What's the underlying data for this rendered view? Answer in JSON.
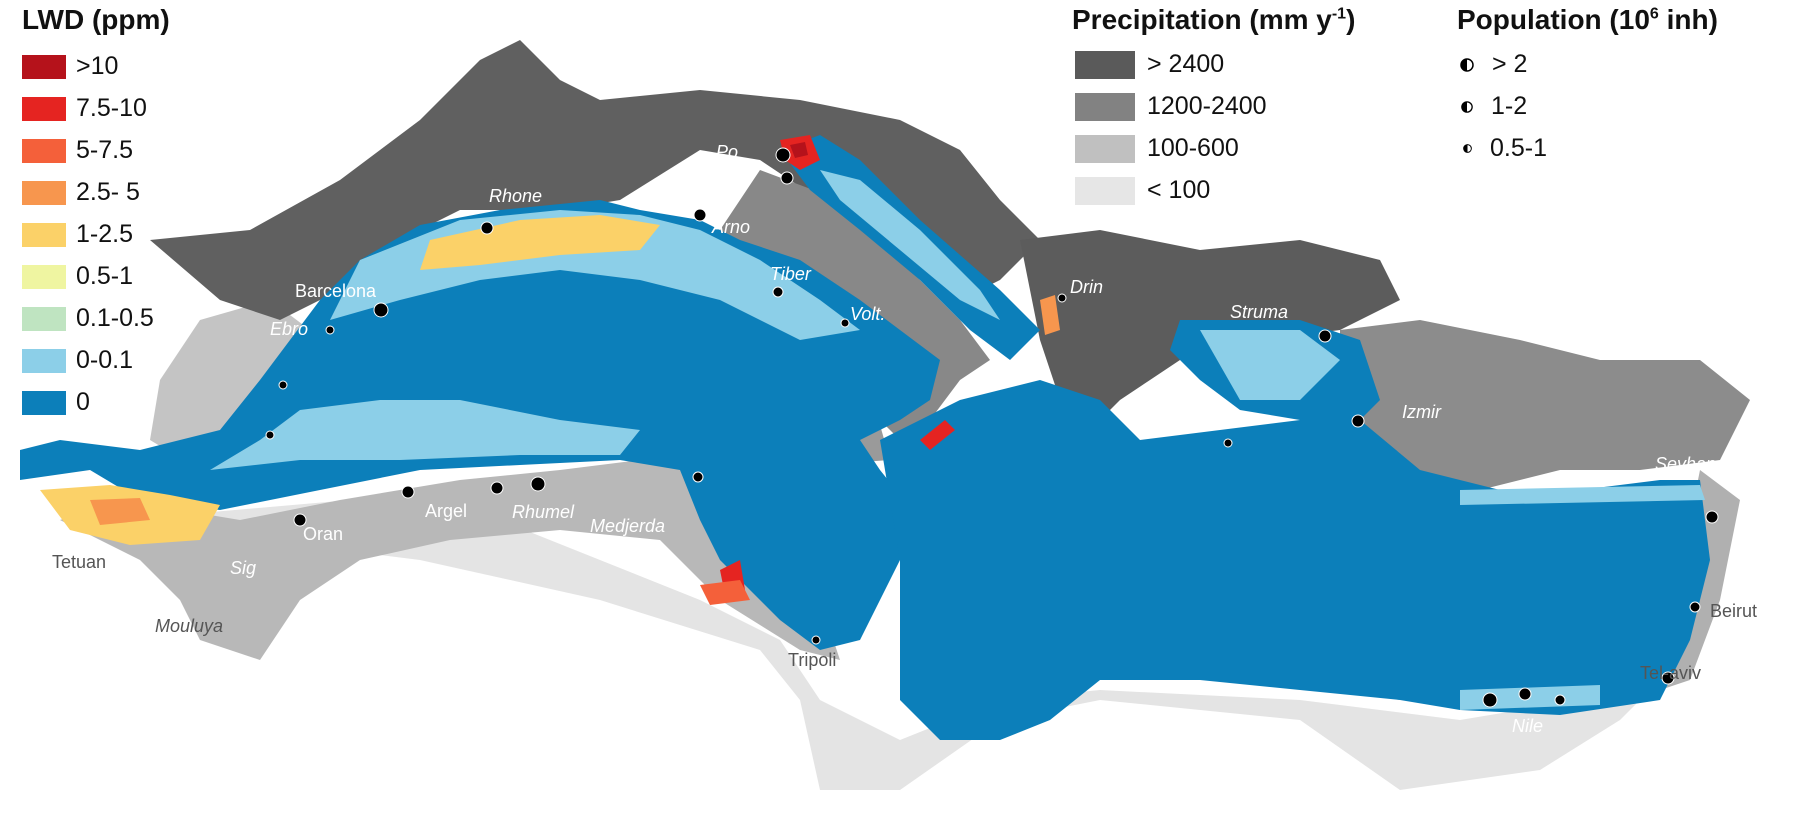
{
  "legend_lwd": {
    "title": "LWD (ppm)",
    "items": [
      {
        "label": ">10",
        "color": "#b5121b"
      },
      {
        "label": "7.5-10",
        "color": "#e52421"
      },
      {
        "label": "5-7.5",
        "color": "#f4603a"
      },
      {
        "label": "2.5- 5",
        "color": "#f7964e"
      },
      {
        "label": "1-2.5",
        "color": "#fbd168"
      },
      {
        "label": "0.5-1",
        "color": "#eff5a1"
      },
      {
        "label": "0.1-0.5",
        "color": "#bfe4c1"
      },
      {
        "label": "0-0.1",
        "color": "#8ccfe8"
      },
      {
        "label": "0",
        "color": "#0c7fba"
      }
    ]
  },
  "legend_precip": {
    "title_main": "Precipitation (mm y",
    "title_sup": "-1",
    "title_end": ")",
    "items": [
      {
        "label": "> 2400",
        "color": "#5a5a5a"
      },
      {
        "label": "1200-2400",
        "color": "#828282"
      },
      {
        "label": "100-600",
        "color": "#c0c0c0"
      },
      {
        "label": "< 100",
        "color": "#e6e6e6"
      }
    ]
  },
  "legend_pop": {
    "title_main": "Population (10",
    "title_sup": "6",
    "title_end": " inh)",
    "items": [
      {
        "label": "> 2",
        "size": "large"
      },
      {
        "label": "1-2",
        "size": "medium"
      },
      {
        "label": "0.5-1",
        "size": "small"
      }
    ]
  },
  "labels": {
    "rivers": [
      "Po",
      "Rhone",
      "Arno",
      "Tiber",
      "Volt.",
      "Drin",
      "Struma",
      "Ebro",
      "Rhumel",
      "Medjerda",
      "Sig",
      "Mouluya",
      "Nile",
      "Seyhan",
      "Izmir"
    ],
    "cities": [
      "Barcelona",
      "Argel",
      "Oran",
      "Tetuan",
      "Tripoli",
      "Beirut",
      "Tel-aviv"
    ]
  },
  "map_data": {
    "layers": [
      "LWD concentration grid (sea)",
      "Precipitation (land shading)",
      "Population (coastal city symbols)"
    ],
    "sea_color_default": "#0c7fba"
  }
}
